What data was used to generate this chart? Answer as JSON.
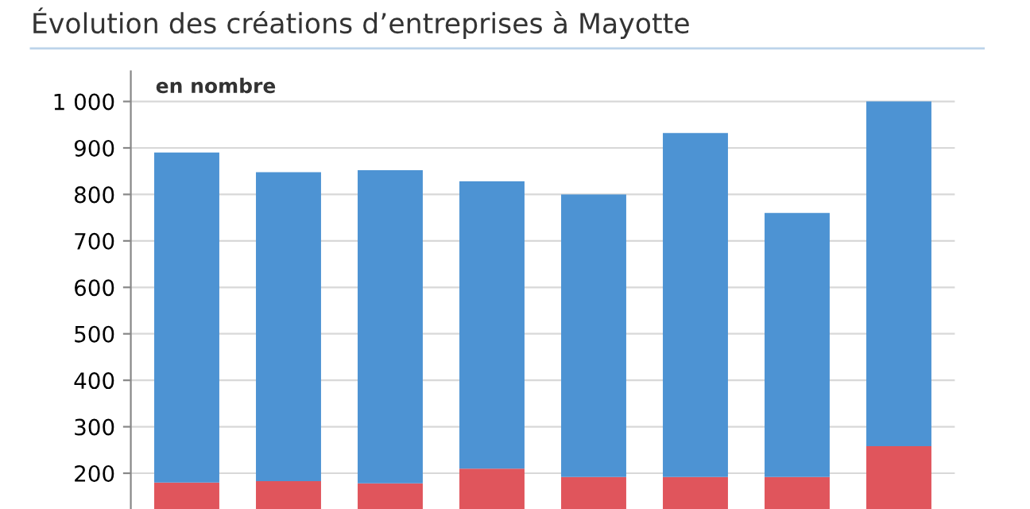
{
  "chart_data": {
    "type": "bar",
    "title": "Évolution des créations d’entreprises à Mayotte",
    "categories": [
      null,
      null,
      null,
      null,
      null,
      null,
      null,
      null
    ],
    "stacked": true,
    "series": [
      {
        "color": "#e0555c",
        "values": [
          180,
          183,
          178,
          210,
          192,
          192,
          192,
          258
        ]
      },
      {
        "color": "#4d93d3",
        "values": [
          710,
          665,
          674,
          618,
          608,
          740,
          568,
          742
        ]
      }
    ],
    "ylim": [
      123,
      1065
    ],
    "yticks": [
      200,
      300,
      400,
      500,
      600,
      700,
      800,
      900,
      {
        "value": 1000,
        "label": "1 000"
      }
    ],
    "grid": "y",
    "annotations": [
      "en nombre"
    ]
  }
}
